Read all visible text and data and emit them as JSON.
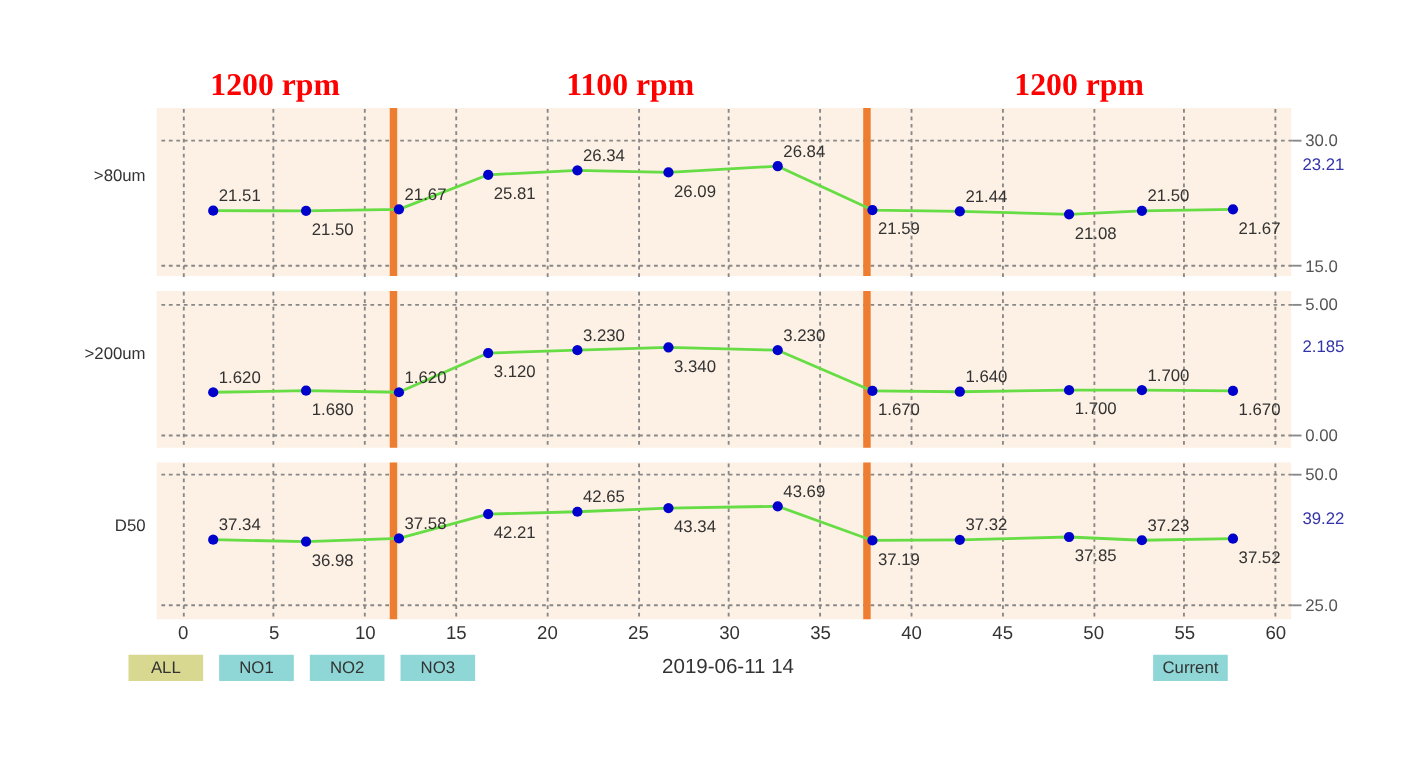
{
  "chart_data": [
    {
      "type": "line",
      "ylabel": ">80um",
      "x": [
        1.7,
        6.8,
        11.9,
        16.8,
        21.7,
        26.7,
        32.7,
        37.9,
        42.7,
        48.7,
        52.7,
        57.7
      ],
      "series": [
        {
          "color": "#66dd44",
          "values": [
            21.51,
            21.5,
            21.67,
            25.81,
            26.34,
            26.09,
            26.84,
            21.59,
            21.44,
            21.08,
            21.5,
            21.67
          ],
          "value_labels": [
            "21.51",
            "21.50",
            "21.67",
            "25.81",
            "26.34",
            "26.09",
            "26.84",
            "21.59",
            "21.44",
            "21.08",
            "21.50",
            "21.67"
          ]
        }
      ],
      "marker": "circle",
      "xlim": [
        -1.4,
        60.9
      ],
      "xticks": [
        0,
        5,
        10,
        15,
        20,
        25,
        30,
        35,
        40,
        45,
        50,
        55,
        60
      ],
      "ylim": [
        13.7,
        33.8
      ],
      "yticks": [
        {
          "value": 15,
          "label": "15.0"
        },
        {
          "value": 30,
          "label": "30.0"
        }
      ],
      "grid": true,
      "tick_labels": "y",
      "ref_lines": [
        {
          "axis": "x",
          "value": 11.6,
          "color": "#ed7d31"
        },
        {
          "axis": "x",
          "value": 37.6,
          "color": "#ed7d31"
        }
      ],
      "annotations": [
        "1200 rpm",
        "1100 rpm",
        "1200 rpm",
        "23.21"
      ]
    },
    {
      "type": "line",
      "ylabel": ">200um",
      "x": [
        1.7,
        6.8,
        11.9,
        16.8,
        21.7,
        26.7,
        32.7,
        37.9,
        42.7,
        48.7,
        52.7,
        57.7
      ],
      "series": [
        {
          "color": "#66dd44",
          "values": [
            1.62,
            1.68,
            1.62,
            3.12,
            3.23,
            3.34,
            3.23,
            1.67,
            1.64,
            1.7,
            1.7,
            1.67
          ],
          "value_labels": [
            "1.620",
            "1.680",
            "1.620",
            "3.120",
            "3.230",
            "3.340",
            "3.230",
            "1.670",
            "1.640",
            "1.700",
            "1.700",
            "1.670"
          ]
        }
      ],
      "marker": "circle",
      "xlim": [
        -1.4,
        60.9
      ],
      "xticks": [
        0,
        5,
        10,
        15,
        20,
        25,
        30,
        35,
        40,
        45,
        50,
        55,
        60
      ],
      "ylim": [
        -0.5,
        5.5
      ],
      "yticks": [
        {
          "value": 0,
          "label": "0.00"
        },
        {
          "value": 5,
          "label": "5.00"
        }
      ],
      "grid": true,
      "tick_labels": "y",
      "ref_lines": [
        {
          "axis": "x",
          "value": 11.6,
          "color": "#ed7d31"
        },
        {
          "axis": "x",
          "value": 37.6,
          "color": "#ed7d31"
        }
      ],
      "annotations": [
        "2.185"
      ]
    },
    {
      "type": "line",
      "ylabel": "D50",
      "x": [
        1.7,
        6.8,
        11.9,
        16.8,
        21.7,
        26.7,
        32.7,
        37.9,
        42.7,
        48.7,
        52.7,
        57.7
      ],
      "series": [
        {
          "color": "#66dd44",
          "values": [
            37.34,
            36.98,
            37.58,
            42.21,
            42.65,
            43.34,
            43.69,
            37.19,
            37.32,
            37.85,
            37.23,
            37.52
          ],
          "value_labels": [
            "37.34",
            "36.98",
            "37.58",
            "42.21",
            "42.65",
            "43.34",
            "43.69",
            "37.19",
            "37.32",
            "37.85",
            "37.23",
            "37.52"
          ]
        }
      ],
      "marker": "circle",
      "xlim": [
        -1.4,
        60.9
      ],
      "xticks": [
        0,
        5,
        10,
        15,
        20,
        25,
        30,
        35,
        40,
        45,
        50,
        55,
        60
      ],
      "ylim": [
        22.2,
        52
      ],
      "yticks": [
        {
          "value": 25,
          "label": "25.0"
        },
        {
          "value": 50,
          "label": "50.0"
        }
      ],
      "grid": true,
      "ref_lines": [
        {
          "axis": "x",
          "value": 11.6,
          "color": "#ed7d31"
        },
        {
          "axis": "x",
          "value": 37.6,
          "color": "#ed7d31"
        }
      ],
      "annotations": [
        "39.22"
      ]
    },
    {
      "type": "other",
      "annotations": [
        "ALL",
        "NO1",
        "NO2",
        "NO3",
        "2019-06-11 14",
        "Current"
      ]
    }
  ]
}
